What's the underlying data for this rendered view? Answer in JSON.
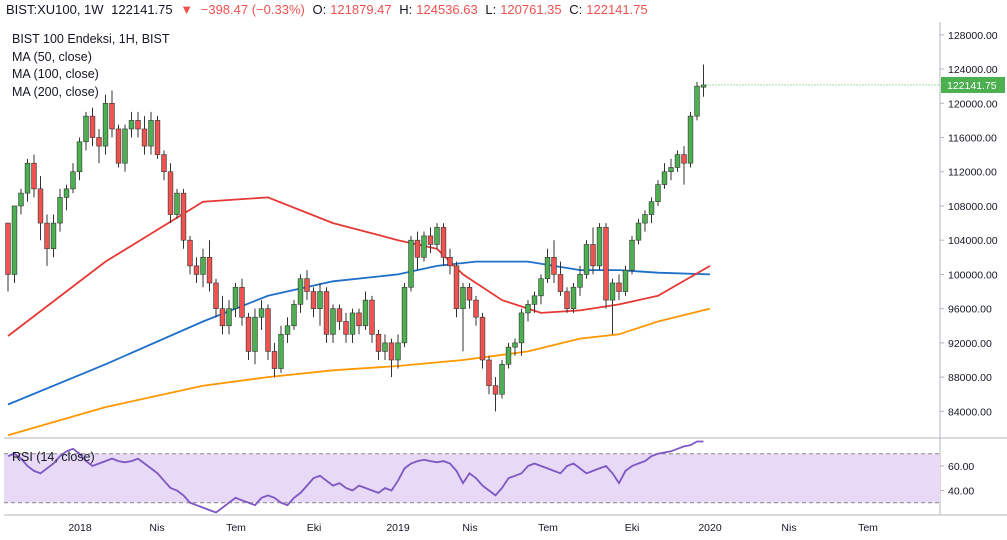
{
  "header": {
    "symbol": "BIST:XU100, 1W",
    "last": "122141.75",
    "change": "−398.47 (−0.33%)",
    "o_label": "O:",
    "o_value": "121879.47",
    "h_label": "H:",
    "h_value": "124536.63",
    "l_label": "L:",
    "l_value": "120761.35",
    "c_label": "C:",
    "c_value": "122141.75",
    "down_icon": "triangle-down-icon",
    "down_color": "#ef5350"
  },
  "legend": {
    "title": "BIST 100 Endeksi, 1H, BIST",
    "ma50": "MA (50, close)",
    "ma100": "MA (100, close)",
    "ma200": "MA (200, close)"
  },
  "rsi": {
    "label": "RSI (14, close)",
    "color": "#7e57c2",
    "band_fill": "#e8d9f7"
  },
  "colors": {
    "up": "#4caf50",
    "down": "#ef5350",
    "ma50": "#e53935",
    "ma100": "#1e6fc8",
    "ma200": "#ff9800",
    "price_badge": "#4caf50"
  },
  "chart_data": [
    {
      "type": "candlestick",
      "title": "BIST 100 Endeksi, 1H, BIST",
      "ylim": [
        81000,
        129500
      ],
      "y_ticks": [
        "84000.00",
        "88000.00",
        "92000.00",
        "96000.00",
        "100000.00",
        "104000.00",
        "108000.00",
        "112000.00",
        "116000.00",
        "120000.00",
        "124000.00",
        "128000.00"
      ],
      "x_ticks": [
        "2018",
        "Nis",
        "Tem",
        "Eki",
        "2019",
        "Nis",
        "Tem",
        "Eki",
        "2020",
        "Nis",
        "Tem"
      ],
      "last_price_label": "122141.75",
      "candles": [
        [
          106000,
          106000,
          98000,
          100000
        ],
        [
          100000,
          108000,
          99000,
          108000
        ],
        [
          108000,
          110000,
          107000,
          109500
        ],
        [
          109500,
          113500,
          108500,
          113000
        ],
        [
          113000,
          114000,
          109000,
          110000
        ],
        [
          110000,
          111500,
          104000,
          106000
        ],
        [
          106000,
          107000,
          101000,
          103000
        ],
        [
          103000,
          107000,
          102000,
          106000
        ],
        [
          106000,
          110000,
          105000,
          109000
        ],
        [
          109000,
          110500,
          107500,
          110000
        ],
        [
          110000,
          113000,
          109500,
          112000
        ],
        [
          112000,
          116000,
          111000,
          115500
        ],
        [
          115500,
          119000,
          114500,
          118500
        ],
        [
          118500,
          119500,
          115000,
          116000
        ],
        [
          116000,
          117000,
          113000,
          115000
        ],
        [
          115000,
          121000,
          114000,
          120000
        ],
        [
          120000,
          121500,
          116000,
          117000
        ],
        [
          117000,
          117500,
          112500,
          113000
        ],
        [
          113000,
          117500,
          112000,
          117000
        ],
        [
          117000,
          119000,
          116000,
          118000
        ],
        [
          118000,
          119000,
          116000,
          117000
        ],
        [
          117000,
          118500,
          114000,
          115000
        ],
        [
          115000,
          119000,
          114000,
          118000
        ],
        [
          118000,
          118500,
          113500,
          114000
        ],
        [
          114000,
          114500,
          111000,
          112000
        ],
        [
          112000,
          113000,
          106000,
          107000
        ],
        [
          107000,
          110000,
          106500,
          109500
        ],
        [
          109500,
          110000,
          103000,
          104000
        ],
        [
          104000,
          104500,
          100000,
          101000
        ],
        [
          101000,
          102000,
          99000,
          100000
        ],
        [
          100000,
          103000,
          98500,
          102000
        ],
        [
          102000,
          104000,
          98000,
          99000
        ],
        [
          99000,
          99500,
          95000,
          96000
        ],
        [
          96000,
          97500,
          93000,
          94000
        ],
        [
          94000,
          97000,
          93000,
          96000
        ],
        [
          96000,
          99000,
          95000,
          98500
        ],
        [
          98500,
          99500,
          94000,
          95000
        ],
        [
          95000,
          95500,
          90000,
          91000
        ],
        [
          91000,
          96000,
          89500,
          95000
        ],
        [
          95000,
          97000,
          93500,
          96000
        ],
        [
          96000,
          96500,
          90000,
          91000
        ],
        [
          91000,
          92000,
          88000,
          89000
        ],
        [
          89000,
          94000,
          88500,
          93000
        ],
        [
          93000,
          95000,
          92000,
          94000
        ],
        [
          94000,
          97000,
          93500,
          96500
        ],
        [
          96500,
          100000,
          95500,
          99500
        ],
        [
          99500,
          100500,
          97000,
          98000
        ],
        [
          98000,
          98500,
          95000,
          96000
        ],
        [
          96000,
          99000,
          94000,
          98000
        ],
        [
          98000,
          98500,
          92000,
          93000
        ],
        [
          93000,
          96500,
          92000,
          96000
        ],
        [
          96000,
          96500,
          93500,
          94500
        ],
        [
          94500,
          95500,
          92000,
          93000
        ],
        [
          93000,
          96000,
          92000,
          95500
        ],
        [
          95500,
          96000,
          93000,
          94000
        ],
        [
          94000,
          98000,
          93500,
          97000
        ],
        [
          97000,
          97500,
          92000,
          93000
        ],
        [
          93000,
          93500,
          90000,
          91000
        ],
        [
          91000,
          93000,
          90000,
          92000
        ],
        [
          92000,
          92500,
          88000,
          90000
        ],
        [
          90000,
          93000,
          89000,
          92000
        ],
        [
          92000,
          99000,
          91500,
          98500
        ],
        [
          98500,
          104500,
          98000,
          104000
        ],
        [
          104000,
          105000,
          100500,
          102000
        ],
        [
          102000,
          105000,
          101500,
          104500
        ],
        [
          104500,
          105500,
          102500,
          103500
        ],
        [
          103500,
          106000,
          103000,
          105500
        ],
        [
          105500,
          106000,
          101000,
          102000
        ],
        [
          102000,
          103000,
          100000,
          101000
        ],
        [
          101000,
          101500,
          95000,
          96000
        ],
        [
          96000,
          99000,
          91000,
          98500
        ],
        [
          98500,
          99000,
          96000,
          97000
        ],
        [
          97000,
          97500,
          94000,
          95000
        ],
        [
          95000,
          95500,
          89000,
          90000
        ],
        [
          90000,
          90500,
          86000,
          87000
        ],
        [
          87000,
          88000,
          84000,
          86000
        ],
        [
          86000,
          90000,
          85500,
          89500
        ],
        [
          89500,
          92000,
          89000,
          91500
        ],
        [
          91500,
          92500,
          90500,
          92000
        ],
        [
          92000,
          96000,
          90500,
          95500
        ],
        [
          95500,
          97000,
          94500,
          96500
        ],
        [
          96500,
          98000,
          95500,
          97500
        ],
        [
          97500,
          100000,
          96500,
          99500
        ],
        [
          99500,
          103000,
          99000,
          102000
        ],
        [
          102000,
          104000,
          99000,
          100000
        ],
        [
          100000,
          101500,
          97500,
          98000
        ],
        [
          98000,
          98500,
          95500,
          96000
        ],
        [
          96000,
          99000,
          95500,
          98500
        ],
        [
          98500,
          101000,
          97500,
          100000
        ],
        [
          100000,
          104000,
          99500,
          103500
        ],
        [
          103500,
          105500,
          100000,
          101000
        ],
        [
          101000,
          106000,
          100500,
          105500
        ],
        [
          105500,
          106000,
          96000,
          97000
        ],
        [
          97000,
          99500,
          93000,
          99000
        ],
        [
          99000,
          100000,
          97000,
          98000
        ],
        [
          98000,
          101000,
          97500,
          100500
        ],
        [
          100500,
          104500,
          100000,
          104000
        ],
        [
          104000,
          106500,
          103500,
          106000
        ],
        [
          106000,
          107500,
          105000,
          107000
        ],
        [
          107000,
          109000,
          106000,
          108500
        ],
        [
          108500,
          111000,
          108000,
          110500
        ],
        [
          110500,
          113000,
          110000,
          112000
        ],
        [
          112000,
          113500,
          111000,
          112500
        ],
        [
          112500,
          114500,
          112000,
          114000
        ],
        [
          114000,
          115000,
          110500,
          113000
        ],
        [
          113000,
          119000,
          112500,
          118500
        ],
        [
          118500,
          122500,
          118000,
          122000
        ],
        [
          121880,
          124537,
          120761,
          122142
        ]
      ],
      "ma50": [
        [
          0,
          92800
        ],
        [
          15,
          101500
        ],
        [
          30,
          108500
        ],
        [
          40,
          109000
        ],
        [
          50,
          106000
        ],
        [
          60,
          104000
        ],
        [
          66,
          103000
        ],
        [
          70,
          100000
        ],
        [
          76,
          97000
        ],
        [
          82,
          95500
        ],
        [
          88,
          95800
        ],
        [
          94,
          96500
        ],
        [
          100,
          97500
        ],
        [
          108,
          101000
        ]
      ],
      "ma100": [
        [
          0,
          84800
        ],
        [
          15,
          89500
        ],
        [
          30,
          94500
        ],
        [
          40,
          97500
        ],
        [
          50,
          99200
        ],
        [
          60,
          100000
        ],
        [
          66,
          101000
        ],
        [
          72,
          101500
        ],
        [
          80,
          101500
        ],
        [
          88,
          100500
        ],
        [
          94,
          100500
        ],
        [
          100,
          100200
        ],
        [
          108,
          100000
        ]
      ],
      "ma200": [
        [
          0,
          81200
        ],
        [
          15,
          84500
        ],
        [
          30,
          87000
        ],
        [
          40,
          88000
        ],
        [
          50,
          88800
        ],
        [
          60,
          89300
        ],
        [
          70,
          90000
        ],
        [
          80,
          91000
        ],
        [
          88,
          92500
        ],
        [
          94,
          93000
        ],
        [
          100,
          94500
        ],
        [
          108,
          96000
        ]
      ],
      "x_dates": "weekly, 2017-Q4 to 2020-Q3 axis"
    },
    {
      "type": "line",
      "title": "RSI (14, close)",
      "ylim": [
        20,
        82
      ],
      "y_ticks": [
        "40.00",
        "60.00"
      ],
      "bands": [
        30,
        70
      ],
      "values": [
        68,
        70,
        66,
        60,
        56,
        54,
        58,
        62,
        68,
        72,
        74,
        70,
        64,
        60,
        62,
        64,
        66,
        64,
        63,
        64,
        66,
        62,
        58,
        54,
        48,
        42,
        40,
        36,
        30,
        28,
        26,
        24,
        22,
        26,
        30,
        34,
        32,
        30,
        28,
        34,
        36,
        34,
        30,
        28,
        34,
        38,
        44,
        50,
        52,
        48,
        44,
        46,
        42,
        40,
        44,
        42,
        40,
        38,
        42,
        40,
        48,
        58,
        62,
        64,
        65,
        64,
        63,
        64,
        62,
        56,
        46,
        54,
        50,
        44,
        40,
        36,
        42,
        50,
        52,
        54,
        60,
        62,
        60,
        58,
        56,
        54,
        60,
        62,
        58,
        54,
        56,
        58,
        60,
        54,
        46,
        56,
        60,
        62,
        64,
        68,
        70,
        71,
        72,
        74,
        76,
        77,
        80,
        80
      ]
    }
  ]
}
